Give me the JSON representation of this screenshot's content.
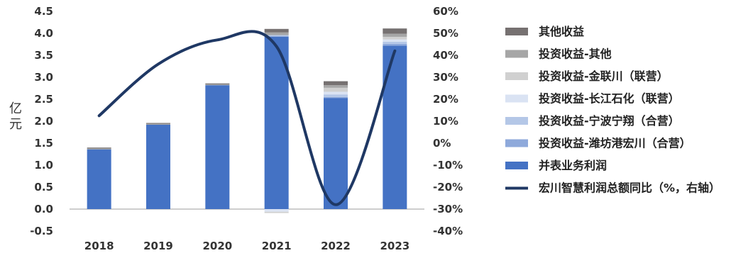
{
  "chart_data": {
    "type": "bar",
    "subtype": "stacked bar with line on secondary axis",
    "categories": [
      "2018",
      "2019",
      "2020",
      "2021",
      "2022",
      "2023"
    ],
    "ylabel": "亿元",
    "ylim": [
      -0.5,
      4.5
    ],
    "yticks": [
      "4.5",
      "4.0",
      "3.5",
      "3.0",
      "2.5",
      "2.0",
      "1.5",
      "1.0",
      "0.5",
      "0.0",
      "-0.5"
    ],
    "y2lim": [
      -40,
      60
    ],
    "y2ticks": [
      "60%",
      "50%",
      "40%",
      "30%",
      "20%",
      "10%",
      "0%",
      "-10%",
      "-20%",
      "-30%",
      "-40%"
    ],
    "grid": false,
    "legend_position": "right",
    "series": [
      {
        "name": "并表业务利润",
        "color": "#4472C4",
        "values": [
          1.36,
          1.92,
          2.82,
          3.92,
          2.53,
          3.72
        ]
      },
      {
        "name": "投资收益-潍坊港宏川（合营）",
        "color": "#8EA9DB",
        "values": [
          0,
          0,
          0,
          0.02,
          0.02,
          0.04
        ]
      },
      {
        "name": "投资收益-宁波宁翔（合营）",
        "color": "#B4C7E7",
        "values": [
          0,
          0,
          0,
          0.02,
          0.06,
          0.05
        ]
      },
      {
        "name": "投资收益-长江石化（联营）",
        "color": "#DAE3F3",
        "values": [
          0,
          0,
          0,
          -0.06,
          0.06,
          0.05
        ]
      },
      {
        "name": "投资收益-金联川（联营）",
        "color": "#D0D0D0",
        "values": [
          0,
          0,
          0,
          -0.03,
          0.09,
          0.06
        ]
      },
      {
        "name": "投资收益-其他",
        "color": "#A6A6A6",
        "values": [
          0.02,
          0.02,
          0.02,
          0.06,
          0.06,
          0.07
        ]
      },
      {
        "name": "其他收益",
        "color": "#767171",
        "values": [
          0.02,
          0.02,
          0.02,
          0.08,
          0.09,
          0.12
        ]
      }
    ],
    "line_series": {
      "name": "宏川智慧利润总额同比（%，右轴）",
      "color": "#1F3864",
      "axis": "right",
      "values": [
        12.5,
        36.0,
        47.0,
        44.0,
        -28.0,
        42.0
      ]
    }
  }
}
